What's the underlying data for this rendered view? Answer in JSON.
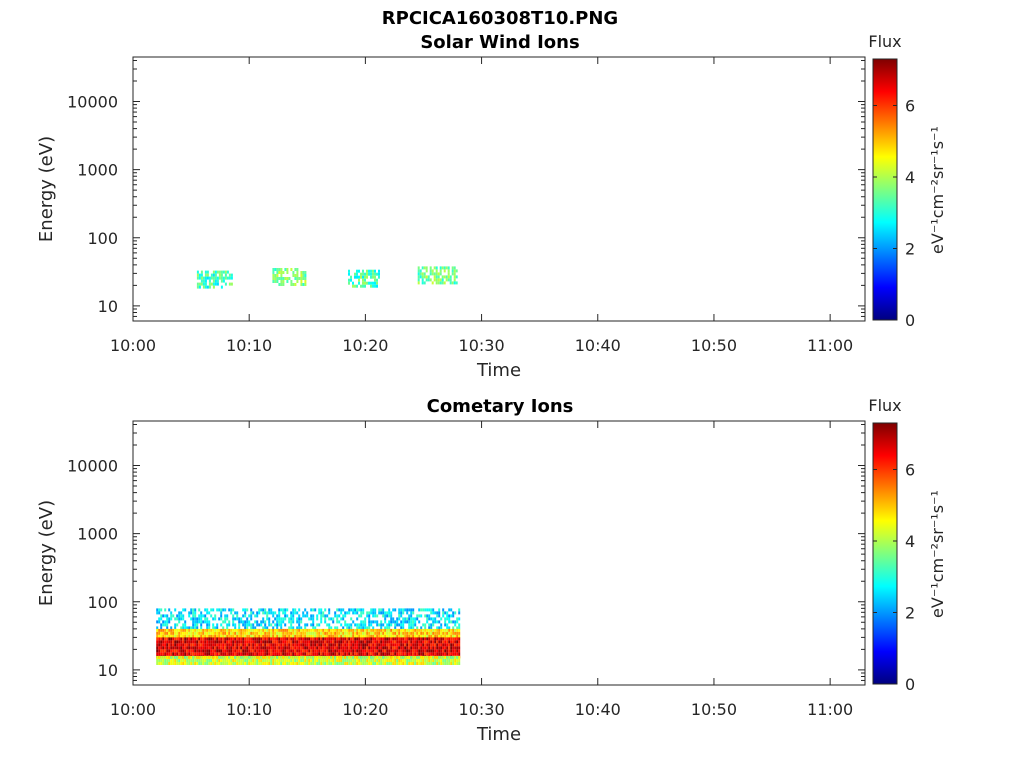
{
  "figure": {
    "title": "RPCICA160308T10.PNG"
  },
  "colorbar": {
    "colormap": "jet",
    "colors": [
      "#00007f",
      "#0000ff",
      "#007fff",
      "#00ffff",
      "#7fff7f",
      "#ffff00",
      "#ff7f00",
      "#ff0000",
      "#7f0000"
    ]
  },
  "chart_data": [
    {
      "type": "heatmap",
      "title": "Solar Wind Ions",
      "xlabel": "Time",
      "ylabel": "Energy (eV)",
      "yscale": "log",
      "x_ticks": [
        "10:00",
        "10:10",
        "10:20",
        "10:30",
        "10:40",
        "10:50",
        "11:00"
      ],
      "x_range": [
        "10:00",
        "11:03"
      ],
      "y_ticks": [
        "10",
        "100",
        "1000",
        "10000"
      ],
      "y_range": [
        6,
        45000
      ],
      "colorbar": {
        "title": "Flux",
        "label": "eV⁻¹cm⁻²sr⁻¹s⁻¹",
        "ticks": [
          "0",
          "2",
          "4",
          "6"
        ],
        "range": [
          0,
          7.3
        ]
      },
      "patches": [
        {
          "t_start": "10:05.5",
          "t_end": "10:08.5",
          "e_min": 18,
          "e_max": 33,
          "flux": 3.2
        },
        {
          "t_start": "10:12",
          "t_end": "10:14.8",
          "e_min": 20,
          "e_max": 36,
          "flux": 3.6
        },
        {
          "t_start": "10:18.5",
          "t_end": "10:21.2",
          "e_min": 19,
          "e_max": 34,
          "flux": 3.3
        },
        {
          "t_start": "10:24.5",
          "t_end": "10:27.8",
          "e_min": 22,
          "e_max": 38,
          "flux": 3.5
        }
      ]
    },
    {
      "type": "heatmap",
      "title": "Cometary Ions",
      "xlabel": "Time",
      "ylabel": "Energy (eV)",
      "yscale": "log",
      "x_ticks": [
        "10:00",
        "10:10",
        "10:20",
        "10:30",
        "10:40",
        "10:50",
        "11:00"
      ],
      "x_range": [
        "10:00",
        "11:03"
      ],
      "y_ticks": [
        "10",
        "100",
        "1000",
        "10000"
      ],
      "y_range": [
        6,
        45000
      ],
      "colorbar": {
        "title": "Flux",
        "label": "eV⁻¹cm⁻²sr⁻¹s⁻¹",
        "ticks": [
          "0",
          "2",
          "4",
          "6"
        ],
        "range": [
          0,
          7.3
        ]
      },
      "patches": [
        {
          "t_start": "10:02",
          "t_end": "10:28",
          "e_min": 40,
          "e_max": 80,
          "flux": 2.6
        },
        {
          "t_start": "10:02",
          "t_end": "10:28",
          "e_min": 30,
          "e_max": 40,
          "flux": 4.8
        },
        {
          "t_start": "10:02",
          "t_end": "10:28",
          "e_min": 16,
          "e_max": 30,
          "flux": 6.6
        },
        {
          "t_start": "10:02",
          "t_end": "10:28",
          "e_min": 12,
          "e_max": 16,
          "flux": 4.2
        }
      ]
    }
  ]
}
